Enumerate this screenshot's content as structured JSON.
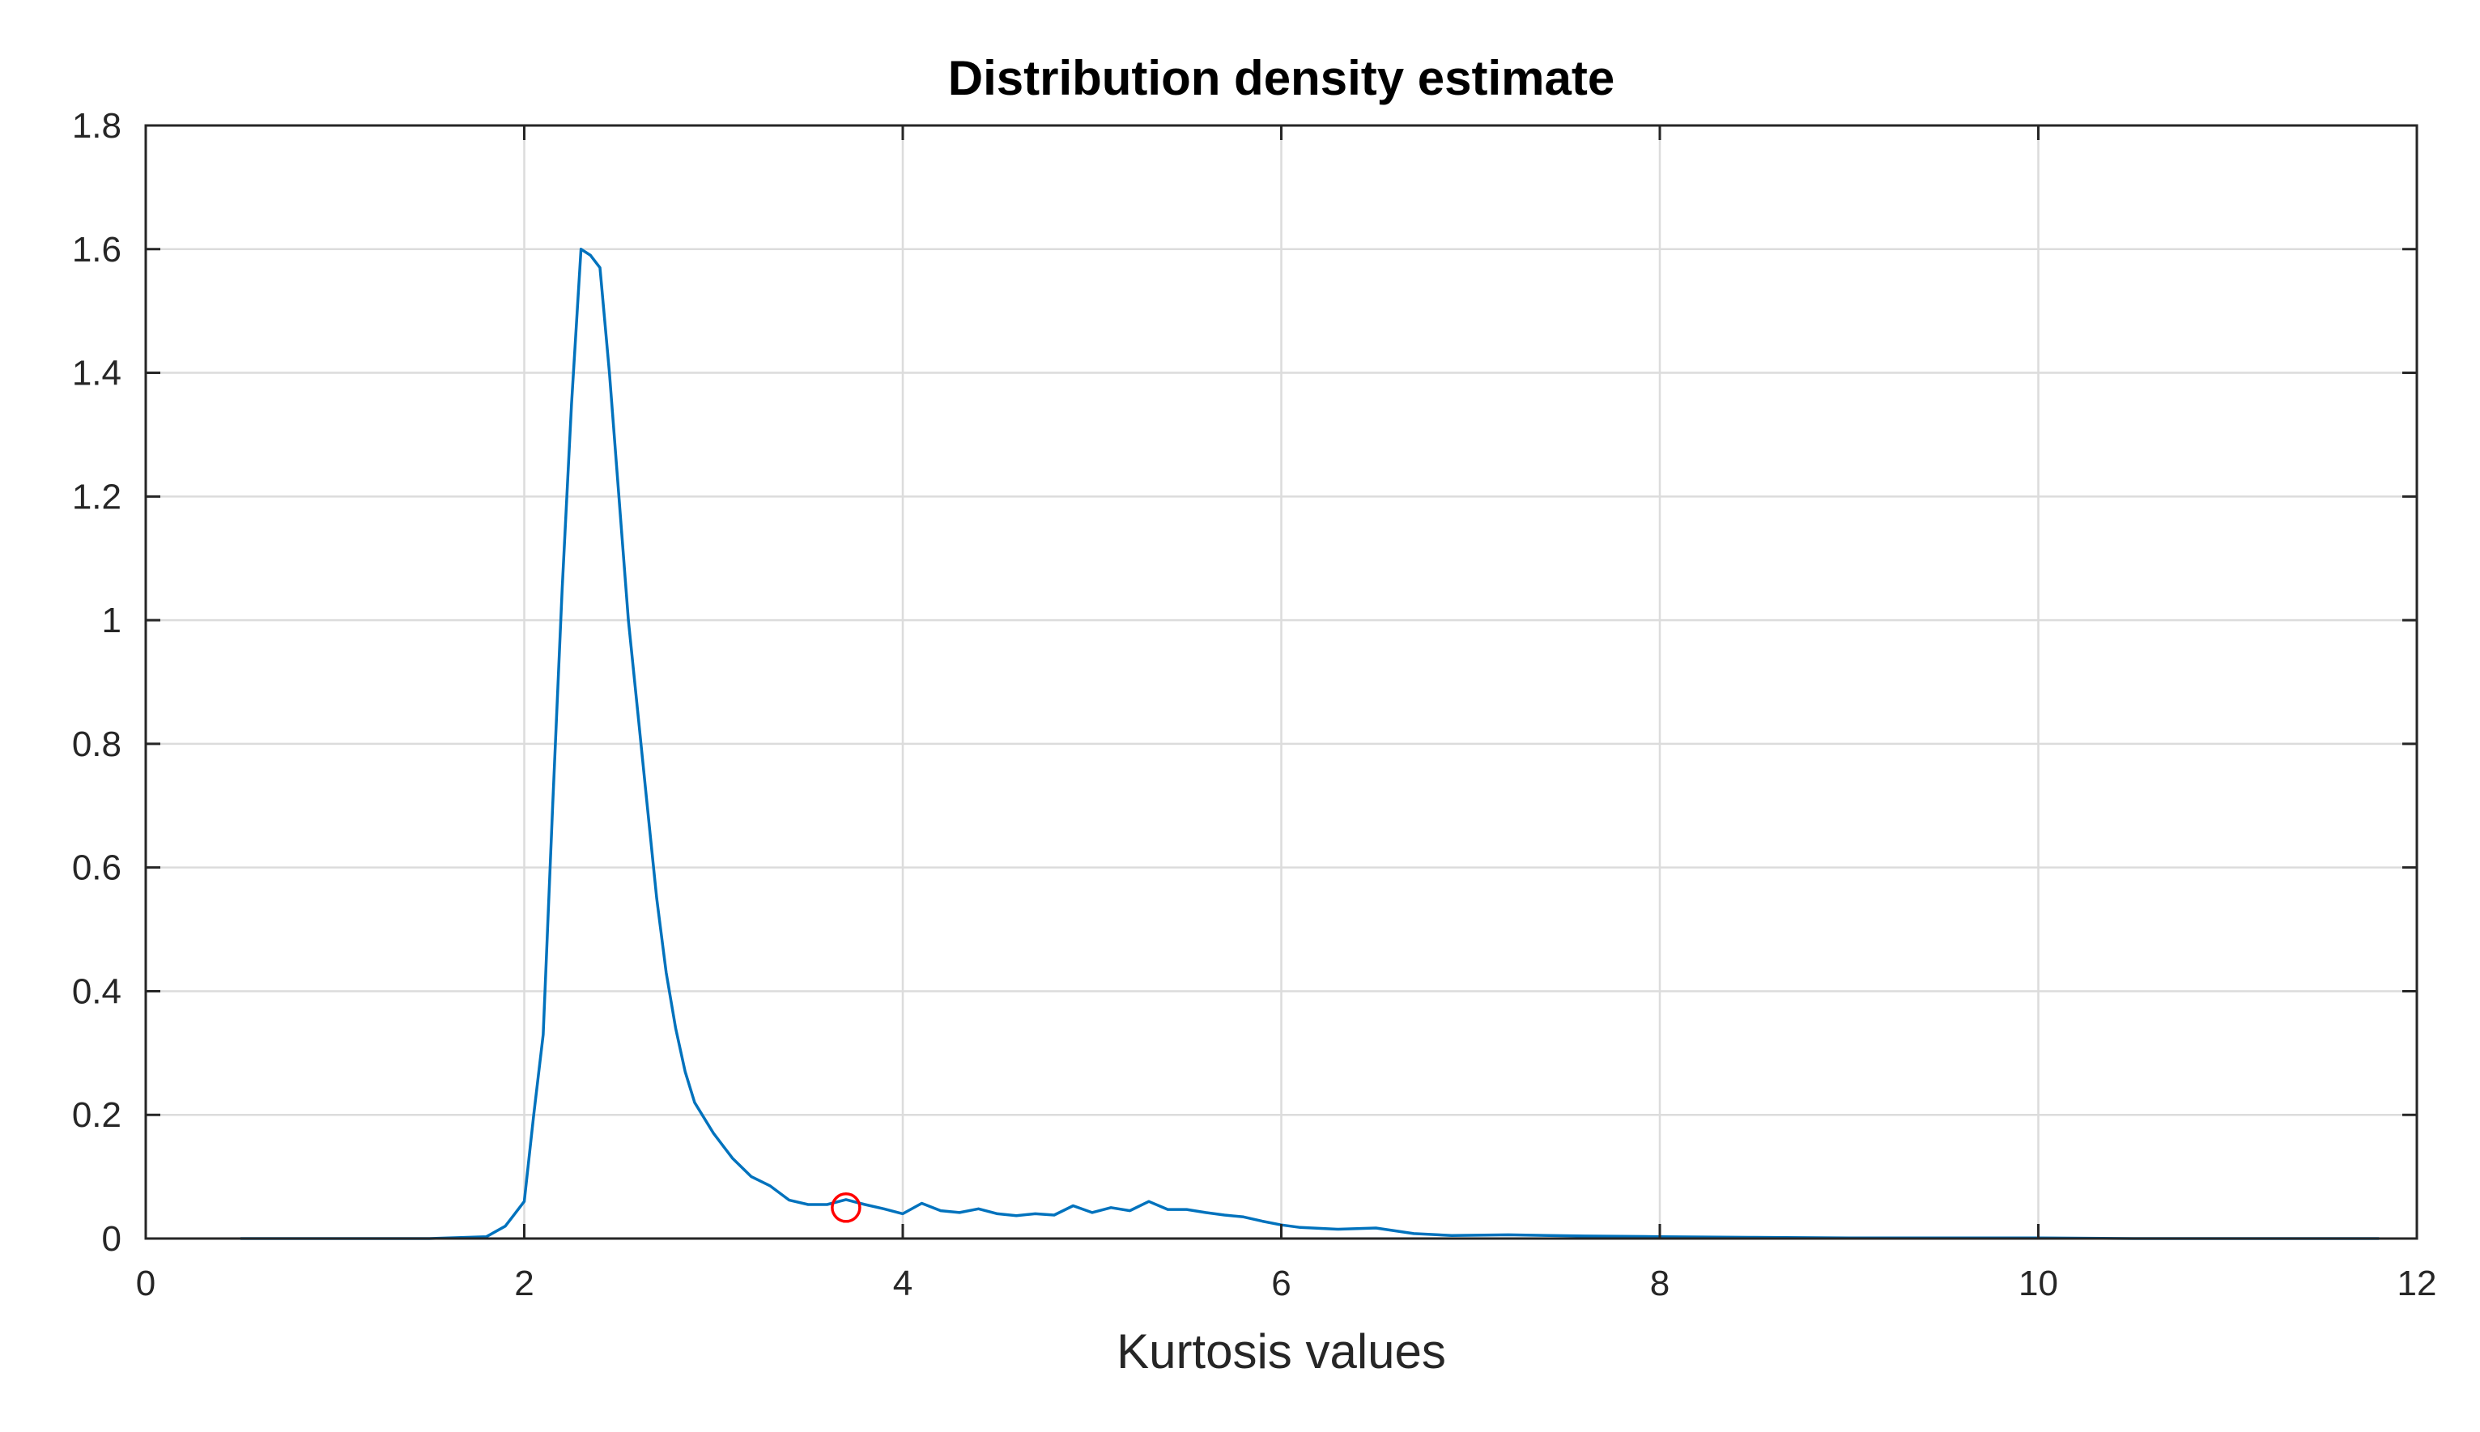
{
  "chart_data": {
    "type": "line",
    "title": "Distribution density estimate",
    "xlabel": "Kurtosis values",
    "ylabel": "",
    "xlim": [
      0,
      12
    ],
    "ylim": [
      0,
      1.8
    ],
    "xticks": [
      0,
      2,
      4,
      6,
      8,
      10,
      12
    ],
    "yticks": [
      0,
      0.2,
      0.4,
      0.6,
      0.8,
      1,
      1.2,
      1.4,
      1.6,
      1.8
    ],
    "xtick_labels": [
      "0",
      "2",
      "4",
      "6",
      "8",
      "10",
      "12"
    ],
    "ytick_labels": [
      "0",
      "0.2",
      "0.4",
      "0.6",
      "0.8",
      "1",
      "1.2",
      "1.4",
      "1.6",
      "1.8"
    ],
    "grid": true,
    "series": [
      {
        "color": "#0072BD",
        "x": [
          0.5,
          1.0,
          1.5,
          1.8,
          1.9,
          2.0,
          2.05,
          2.1,
          2.15,
          2.2,
          2.25,
          2.3,
          2.35,
          2.4,
          2.45,
          2.5,
          2.55,
          2.6,
          2.65,
          2.7,
          2.75,
          2.8,
          2.85,
          2.9,
          3.0,
          3.1,
          3.2,
          3.3,
          3.4,
          3.5,
          3.6,
          3.7,
          3.8,
          3.9,
          4.0,
          4.1,
          4.2,
          4.3,
          4.4,
          4.5,
          4.6,
          4.7,
          4.8,
          4.9,
          5.0,
          5.1,
          5.2,
          5.3,
          5.4,
          5.5,
          5.6,
          5.7,
          5.8,
          5.9,
          6.0,
          6.1,
          6.3,
          6.5,
          6.7,
          6.9,
          7.2,
          7.6,
          8.0,
          8.5,
          9.0,
          9.5,
          10.0,
          10.5,
          11.0,
          11.5,
          11.8
        ],
        "y": [
          0.0,
          0.0,
          0.0,
          0.003,
          0.02,
          0.06,
          0.2,
          0.33,
          0.7,
          1.05,
          1.35,
          1.6,
          1.59,
          1.57,
          1.4,
          1.2,
          1.0,
          0.85,
          0.7,
          0.55,
          0.43,
          0.34,
          0.27,
          0.22,
          0.17,
          0.13,
          0.1,
          0.085,
          0.062,
          0.055,
          0.055,
          0.063,
          0.055,
          0.048,
          0.04,
          0.057,
          0.045,
          0.042,
          0.048,
          0.04,
          0.037,
          0.04,
          0.038,
          0.053,
          0.042,
          0.05,
          0.045,
          0.06,
          0.047,
          0.047,
          0.042,
          0.038,
          0.035,
          0.028,
          0.022,
          0.018,
          0.015,
          0.017,
          0.008,
          0.005,
          0.006,
          0.004,
          0.003,
          0.002,
          0.001,
          0.001,
          0.001,
          0.0,
          0.0,
          0.0,
          0.0
        ]
      }
    ],
    "marker": {
      "x": 3.7,
      "y": 0.05,
      "color": "#FF0000",
      "shape": "circle"
    }
  }
}
